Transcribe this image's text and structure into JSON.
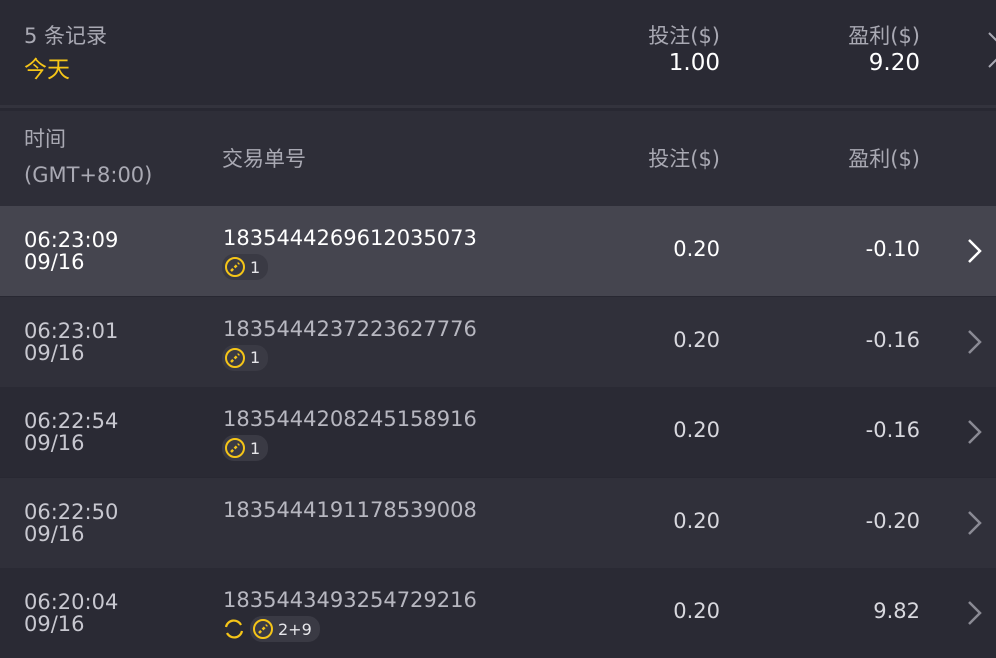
{
  "summary": {
    "records": "5 条记录",
    "period": "今天",
    "bet_label": "投注($)",
    "bet_total": "1.00",
    "profit_label": "盈利($)",
    "profit_total": "9.20"
  },
  "columns": {
    "time": "时间",
    "timezone": "(GMT+8:00)",
    "order_id": "交易单号",
    "bet": "投注($)",
    "profit": "盈利($)"
  },
  "colors": {
    "accent": "#f5c518",
    "background": "#282832",
    "active_row": "#45454f"
  },
  "rows": [
    {
      "time": "06:23:09",
      "date": "09/16",
      "order_id": "1835444269612035073",
      "badge": "1",
      "bet": "0.20",
      "profit": "-0.10",
      "active": true
    },
    {
      "time": "06:23:01",
      "date": "09/16",
      "order_id": "1835444237223627776",
      "badge": "1",
      "bet": "0.20",
      "profit": "-0.16"
    },
    {
      "time": "06:22:54",
      "date": "09/16",
      "order_id": "1835444208245158916",
      "badge": "1",
      "bet": "0.20",
      "profit": "-0.16"
    },
    {
      "time": "06:22:50",
      "date": "09/16",
      "order_id": "1835444191178539008",
      "badge": null,
      "bet": "0.20",
      "profit": "-0.20"
    },
    {
      "time": "06:20:04",
      "date": "09/16",
      "order_id": "1835443493254729216",
      "badge": "2+9",
      "refresh": true,
      "bet": "0.20",
      "profit": "9.82"
    }
  ]
}
